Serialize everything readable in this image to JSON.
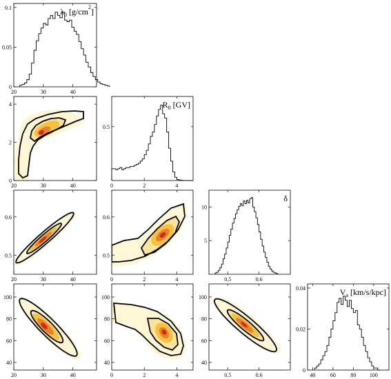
{
  "figure": {
    "colors": {
      "outer": "#fdf7d6",
      "mid": "#f9e49a",
      "inner": "#f3c243",
      "core": "#e8812b",
      "peak": "#cf2a1a",
      "line": "#000000"
    }
  },
  "chart_data": [
    {
      "type": "histogram",
      "panel": "lambda0",
      "label_main": "λ",
      "label_sub": "0",
      "label_rest": " [g/cm",
      "label_sup": "2",
      "label_close": "]",
      "xlim": [
        20,
        48
      ],
      "ylim": [
        0,
        0.105
      ],
      "xticks": [
        "20",
        "30",
        "40"
      ],
      "yticks": [
        "0",
        "0.05",
        "0.1"
      ],
      "bin_edges_start": 22,
      "bin_width": 0.8,
      "values": [
        0.002,
        0.003,
        0.005,
        0.009,
        0.016,
        0.03,
        0.046,
        0.058,
        0.067,
        0.074,
        0.08,
        0.078,
        0.086,
        0.09,
        0.086,
        0.094,
        0.09,
        0.087,
        0.094,
        0.084,
        0.082,
        0.084,
        0.075,
        0.07,
        0.066,
        0.057,
        0.048,
        0.04,
        0.031,
        0.025,
        0.018,
        0.013,
        0.009,
        0.006,
        0.004,
        0.003,
        0.002,
        0.001
      ]
    },
    {
      "type": "histogram",
      "panel": "R0",
      "label_main": "R",
      "label_sub": "0",
      "label_rest": " [GV]",
      "xlim": [
        0,
        5
      ],
      "ylim": [
        0,
        0.78
      ],
      "xticks": [
        "0",
        "2",
        "4"
      ],
      "yticks": [
        "0.5"
      ],
      "bin_edges_start": 0,
      "bin_width": 0.125,
      "values": [
        0.11,
        0.11,
        0.1,
        0.11,
        0.12,
        0.1,
        0.11,
        0.12,
        0.12,
        0.13,
        0.13,
        0.14,
        0.15,
        0.16,
        0.18,
        0.2,
        0.24,
        0.28,
        0.34,
        0.41,
        0.45,
        0.52,
        0.6,
        0.66,
        0.7,
        0.62,
        0.58,
        0.45,
        0.3,
        0.18,
        0.08,
        0.03,
        0.01,
        0.005,
        0.002,
        0.0,
        0.0,
        0.0,
        0.0,
        0.0
      ]
    },
    {
      "type": "histogram",
      "panel": "delta",
      "label_main": "δ",
      "xlim": [
        0.44,
        0.7
      ],
      "ylim": [
        0,
        12.5
      ],
      "xticks": [
        "0.5",
        "0.6"
      ],
      "yticks": [
        "5",
        "10"
      ],
      "bin_edges_start": 0.46,
      "bin_width": 0.005,
      "values": [
        0.2,
        0.3,
        0.6,
        1.0,
        1.5,
        2.3,
        3.0,
        3.9,
        4.8,
        5.8,
        6.7,
        7.6,
        8.3,
        9.0,
        9.6,
        10.1,
        10.5,
        10.2,
        10.9,
        10.5,
        11.0,
        10.6,
        11.2,
        11.4,
        10.0,
        9.3,
        8.4,
        7.4,
        6.3,
        5.2,
        4.2,
        3.3,
        2.5,
        1.8,
        1.2,
        0.8,
        0.5,
        0.3,
        0.2,
        0.1
      ]
    },
    {
      "type": "histogram",
      "panel": "Va",
      "label_main": "V",
      "label_sub": "a",
      "label_rest": " [km/s/kpc]",
      "xlim": [
        35,
        115
      ],
      "ylim": [
        0,
        0.042
      ],
      "xticks": [
        "40",
        "60",
        "80",
        "100"
      ],
      "yticks": [
        "0",
        "0.02",
        "0.04"
      ],
      "bin_edges_start": 42,
      "bin_width": 2,
      "values": [
        0.001,
        0.002,
        0.003,
        0.005,
        0.007,
        0.009,
        0.012,
        0.016,
        0.02,
        0.024,
        0.028,
        0.033,
        0.035,
        0.032,
        0.036,
        0.034,
        0.031,
        0.034,
        0.03,
        0.028,
        0.029,
        0.022,
        0.02,
        0.016,
        0.012,
        0.009,
        0.006,
        0.004,
        0.002,
        0.001,
        0.001,
        0.0
      ]
    },
    {
      "type": "heatmap",
      "panel": "R0_vs_lambda0",
      "x_param": "lambda0",
      "y_param": "R0",
      "xlim": [
        20,
        48
      ],
      "ylim": [
        0,
        4.4
      ],
      "xticks": [
        "20",
        "30",
        "40"
      ],
      "yticks": [
        "0",
        "2",
        "4"
      ],
      "peak": [
        30,
        2.7
      ]
    },
    {
      "type": "heatmap",
      "panel": "delta_vs_lambda0",
      "x_param": "lambda0",
      "y_param": "delta",
      "xlim": [
        20,
        48
      ],
      "ylim": [
        0.45,
        0.67
      ],
      "xticks": [
        "20",
        "30",
        "40"
      ],
      "yticks": [
        "0.5",
        "0.6"
      ],
      "peak": [
        30,
        0.555
      ]
    },
    {
      "type": "heatmap",
      "panel": "delta_vs_R0",
      "x_param": "R0",
      "y_param": "delta",
      "xlim": [
        0,
        5
      ],
      "ylim": [
        0.45,
        0.67
      ],
      "xticks": [
        "0",
        "2",
        "4"
      ],
      "yticks": [
        "0.5",
        "0.6"
      ],
      "peak": [
        2.8,
        0.57
      ]
    },
    {
      "type": "heatmap",
      "panel": "Va_vs_lambda0",
      "x_param": "lambda0",
      "y_param": "Va",
      "xlim": [
        20,
        48
      ],
      "ylim": [
        33,
        112
      ],
      "xticks": [
        "20",
        "30",
        "40"
      ],
      "yticks": [
        "40",
        "60",
        "80",
        "100"
      ],
      "peak": [
        30,
        73
      ]
    },
    {
      "type": "heatmap",
      "panel": "Va_vs_R0",
      "x_param": "R0",
      "y_param": "Va",
      "xlim": [
        0,
        5
      ],
      "ylim": [
        33,
        112
      ],
      "xticks": [
        "0",
        "2",
        "4"
      ],
      "yticks": [
        "40",
        "60",
        "80",
        "100"
      ],
      "peak": [
        2.8,
        71
      ]
    },
    {
      "type": "heatmap",
      "panel": "Va_vs_delta",
      "x_param": "delta",
      "y_param": "Va",
      "xlim": [
        0.44,
        0.7
      ],
      "ylim": [
        33,
        112
      ],
      "xticks": [
        "0.5",
        "0.6"
      ],
      "yticks": [
        "40",
        "60",
        "80",
        "100"
      ],
      "peak": [
        0.56,
        73
      ]
    }
  ]
}
